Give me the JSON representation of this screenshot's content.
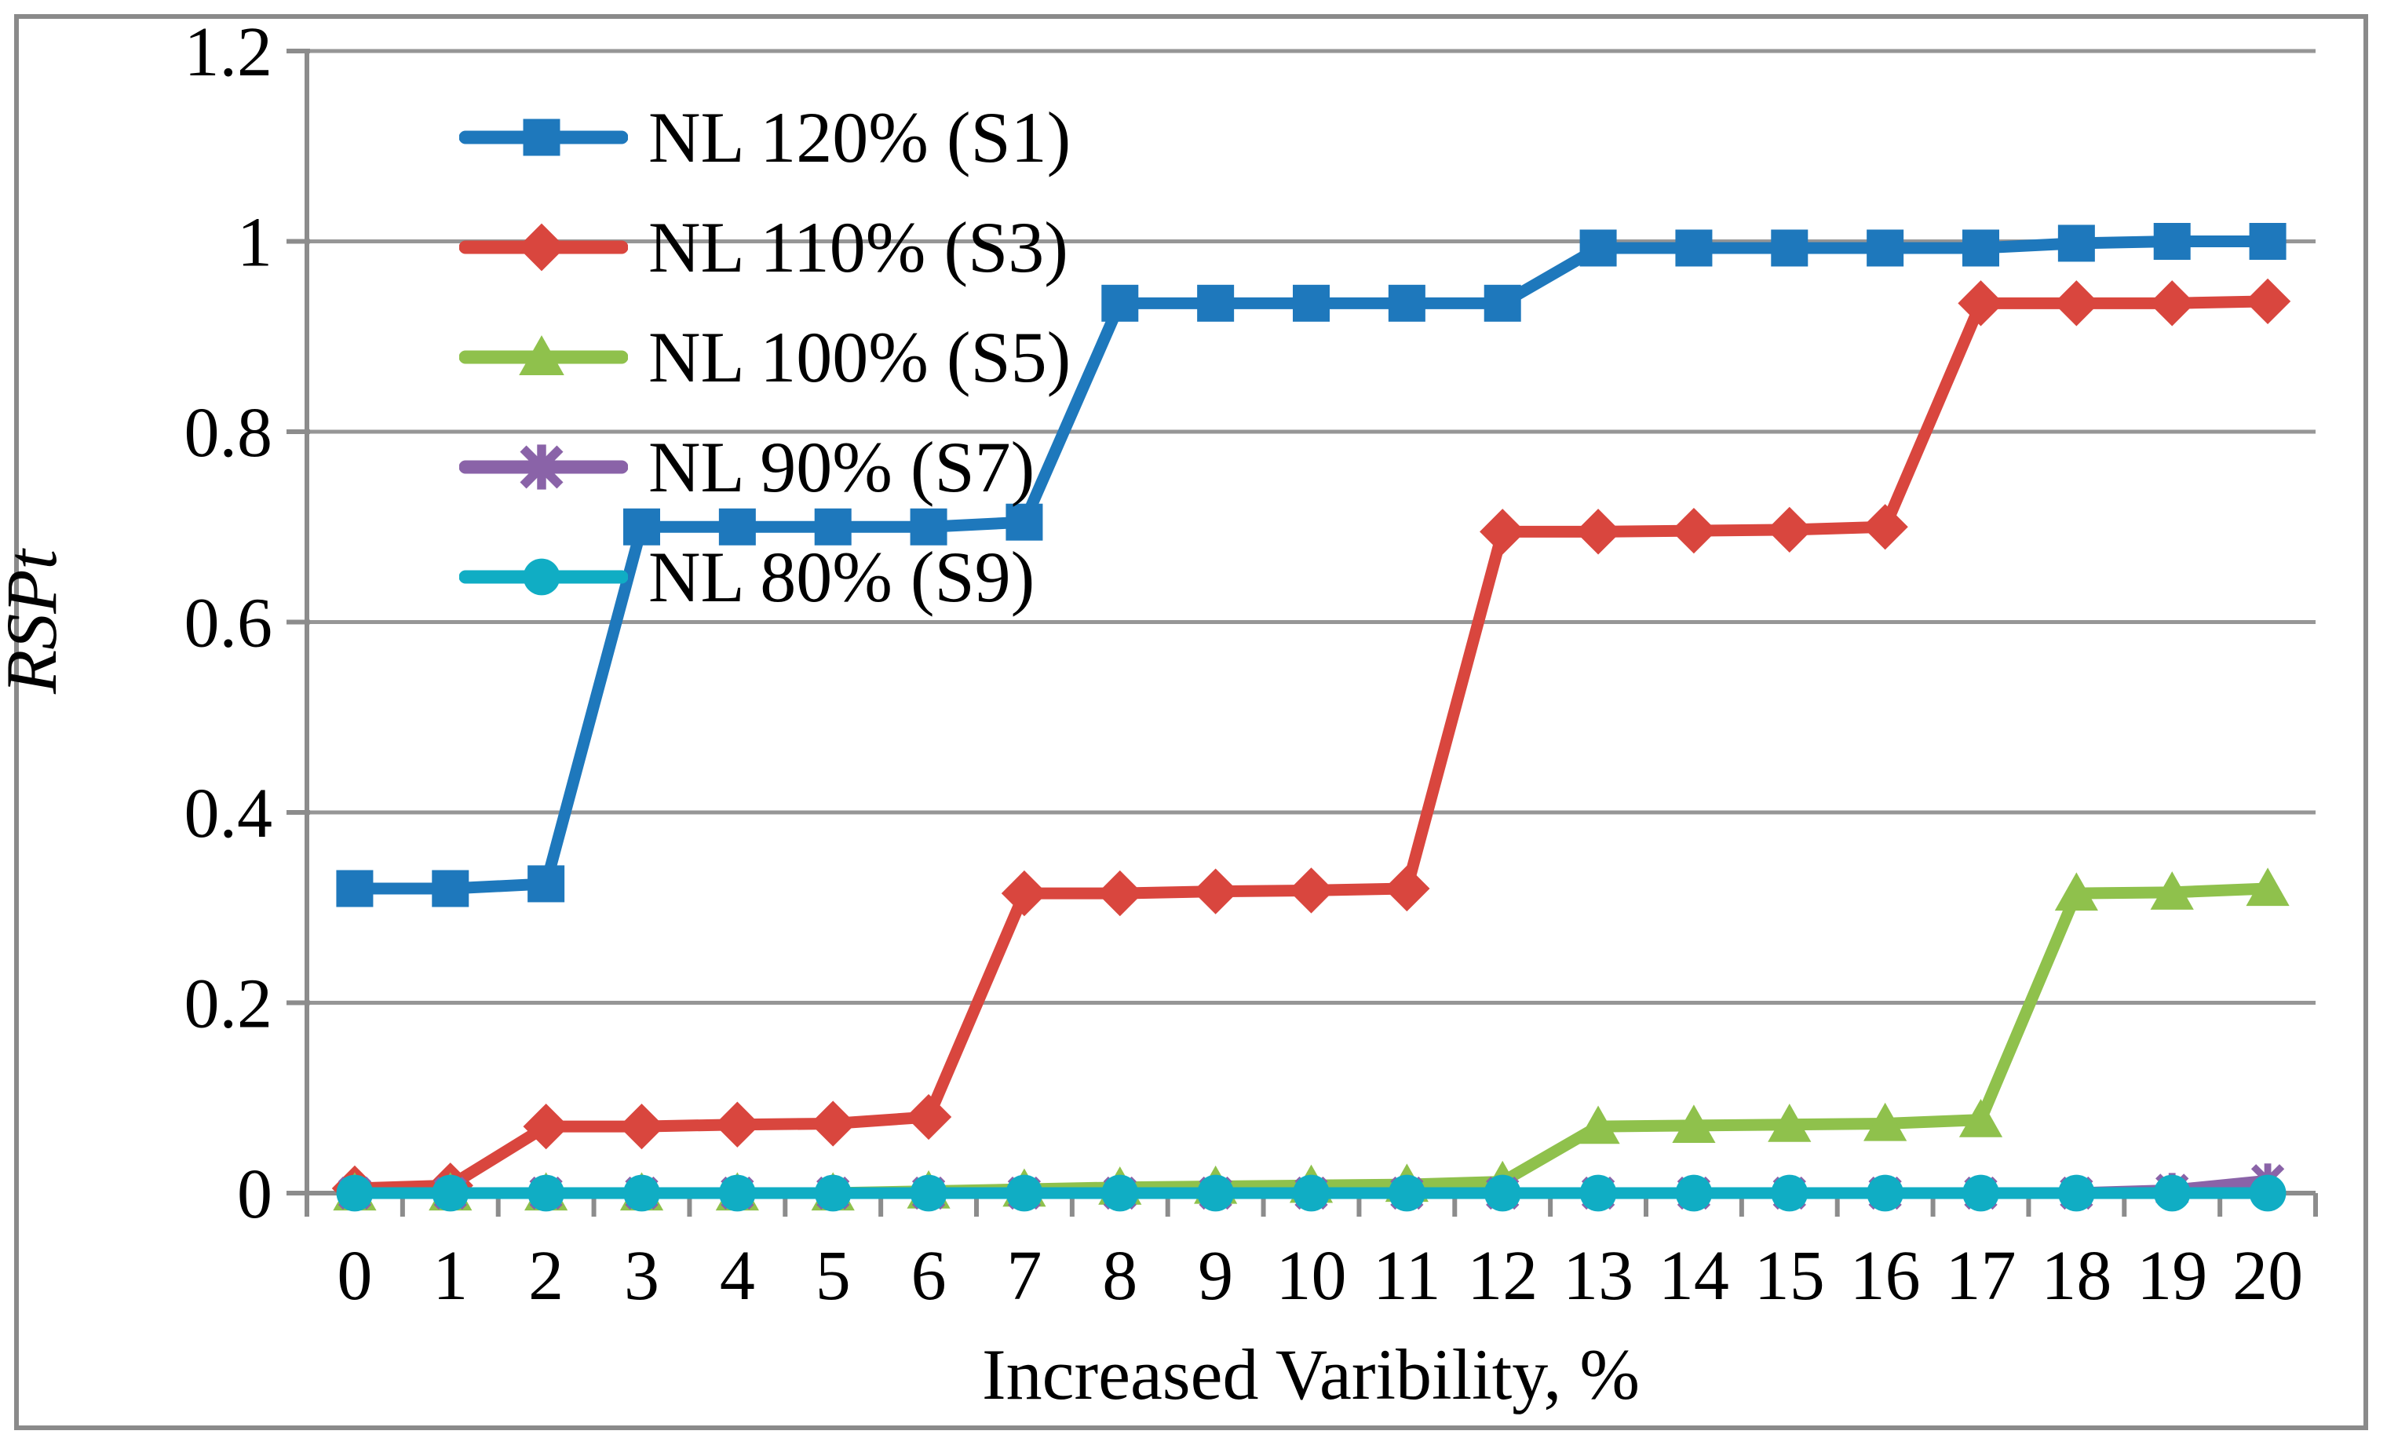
{
  "figure": {
    "border_color": "#8a8a8a",
    "background": "#ffffff"
  },
  "axes": {
    "x_title": "Increased Varibility, %",
    "y_title": "RSPt",
    "x_tick_labels": [
      "0",
      "1",
      "2",
      "3",
      "4",
      "5",
      "6",
      "7",
      "8",
      "9",
      "10",
      "11",
      "12",
      "13",
      "14",
      "15",
      "16",
      "17",
      "18",
      "19",
      "20"
    ],
    "y_tick_labels": [
      "0",
      "0.2",
      "0.4",
      "0.6",
      "0.8",
      "1",
      "1.2"
    ],
    "axis_color": "#8c8c8c",
    "gridline_color": "#969696",
    "text_color": "#000000"
  },
  "legend": {
    "items": [
      {
        "label": "NL 120% (S1)",
        "marker": "square",
        "color": "#1e78bc"
      },
      {
        "label": "NL 110% (S3)",
        "marker": "diamond",
        "color": "#d9463e"
      },
      {
        "label": "NL 100% (S5)",
        "marker": "triangle",
        "color": "#8fc14c"
      },
      {
        "label": "NL 90% (S7)",
        "marker": "asterisk",
        "color": "#8a63a8"
      },
      {
        "label": "NL 80% (S9)",
        "marker": "circle",
        "color": "#10adc4"
      }
    ]
  },
  "chart_data": {
    "type": "line",
    "title": "",
    "xlabel": "Increased Varibility, %",
    "ylabel": "RSPt",
    "x": [
      0,
      1,
      2,
      3,
      4,
      5,
      6,
      7,
      8,
      9,
      10,
      11,
      12,
      13,
      14,
      15,
      16,
      17,
      18,
      19,
      20
    ],
    "ylim": [
      0,
      1.2
    ],
    "ytick_step": 0.2,
    "grid": "horizontal",
    "legend_position": "top-left-inside",
    "series": [
      {
        "name": "NL 120% (S1)",
        "marker": "square",
        "color": "#1e78bc",
        "values": [
          0.32,
          0.32,
          0.325,
          0.7,
          0.7,
          0.7,
          0.7,
          0.705,
          0.935,
          0.935,
          0.935,
          0.935,
          0.935,
          0.993,
          0.993,
          0.993,
          0.993,
          0.993,
          0.998,
          1.0,
          1.0
        ]
      },
      {
        "name": "NL 110% (S3)",
        "marker": "diamond",
        "color": "#d9463e",
        "values": [
          0.005,
          0.008,
          0.07,
          0.07,
          0.072,
          0.073,
          0.08,
          0.315,
          0.315,
          0.317,
          0.318,
          0.32,
          0.695,
          0.695,
          0.696,
          0.697,
          0.7,
          0.935,
          0.935,
          0.935,
          0.937
        ]
      },
      {
        "name": "NL 100% (S5)",
        "marker": "triangle",
        "color": "#8fc14c",
        "values": [
          0,
          0,
          0,
          0,
          0,
          0,
          0.002,
          0.004,
          0.006,
          0.007,
          0.008,
          0.009,
          0.012,
          0.07,
          0.071,
          0.072,
          0.073,
          0.077,
          0.315,
          0.316,
          0.32
        ]
      },
      {
        "name": "NL 90% (S7)",
        "marker": "asterisk",
        "color": "#8a63a8",
        "values": [
          0,
          0,
          0,
          0,
          0,
          0,
          0,
          0,
          0,
          0,
          0,
          0,
          0,
          0,
          0,
          0,
          0,
          0,
          0,
          0.003,
          0.013
        ]
      },
      {
        "name": "NL 80% (S9)",
        "marker": "circle",
        "color": "#10adc4",
        "values": [
          0,
          0,
          0,
          0,
          0,
          0,
          0,
          0,
          0,
          0,
          0,
          0,
          0,
          0,
          0,
          0,
          0,
          0,
          0,
          0,
          0
        ]
      }
    ]
  }
}
